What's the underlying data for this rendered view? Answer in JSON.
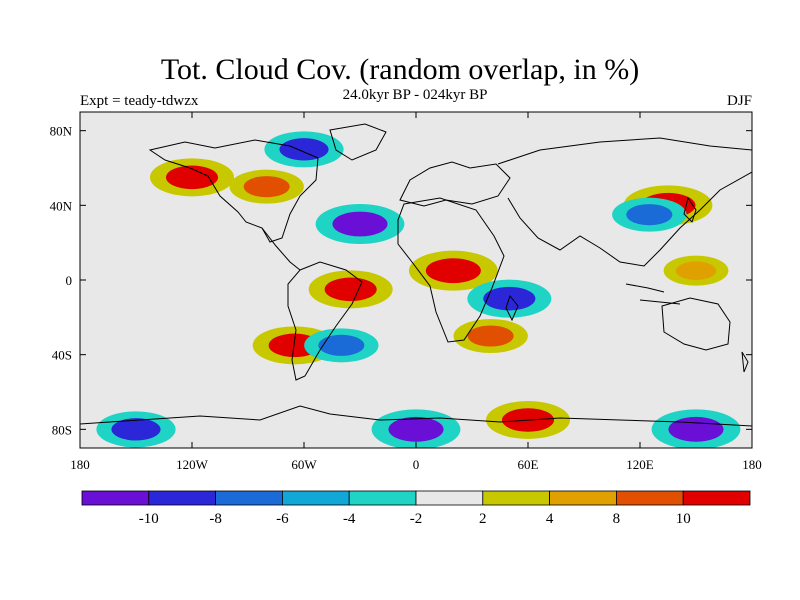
{
  "figure": {
    "title": "Tot. Cloud Cov. (random overlap, in %)",
    "subtitle": "24.0kyr BP - 024kyr BP",
    "experiment_label": "Expt = teady-tdwzx",
    "season": "DJF"
  },
  "chart_data": {
    "type": "heatmap",
    "title": "Tot. Cloud Cov. (random overlap, in %)",
    "subtitle": "24.0kyr BP - 024kyr BP",
    "projection": "cylindrical equidistant",
    "x_ticks": [
      "180",
      "120W",
      "60W",
      "0",
      "60E",
      "120E",
      "180"
    ],
    "x_tick_values": [
      -180,
      -120,
      -60,
      0,
      60,
      120,
      180
    ],
    "y_ticks": [
      "80N",
      "40N",
      "0",
      "40S",
      "80S"
    ],
    "y_tick_values": [
      80,
      40,
      0,
      -40,
      -80
    ],
    "xlim": [
      -180,
      180
    ],
    "ylim": [
      -90,
      90
    ],
    "colorbar": {
      "labels": [
        "-10",
        "-8",
        "-6",
        "-4",
        "-2",
        "2",
        "4",
        "8",
        "10"
      ],
      "levels": [
        -10,
        -8,
        -6,
        -4,
        -2,
        2,
        4,
        8,
        10
      ],
      "colors": [
        "#6a0fd6",
        "#2b27d8",
        "#1a6ad8",
        "#11a7d6",
        "#1fd4c4",
        "#e8e8e8",
        "#c8c800",
        "#e0a000",
        "#e05000",
        "#e00000"
      ]
    },
    "regions": [
      {
        "lon": 20,
        "lat": 5,
        "value": 11
      },
      {
        "lon": -35,
        "lat": -5,
        "value": 10
      },
      {
        "lon": -65,
        "lat": -35,
        "value": 10
      },
      {
        "lon": 135,
        "lat": 40,
        "value": 11
      },
      {
        "lon": -120,
        "lat": 55,
        "value": 10
      },
      {
        "lon": -80,
        "lat": 50,
        "value": 8
      },
      {
        "lon": 40,
        "lat": -30,
        "value": 8
      },
      {
        "lon": 150,
        "lat": 5,
        "value": 6
      },
      {
        "lon": -30,
        "lat": 30,
        "value": -11
      },
      {
        "lon": 50,
        "lat": -10,
        "value": -10
      },
      {
        "lon": 125,
        "lat": 35,
        "value": -8
      },
      {
        "lon": -40,
        "lat": -35,
        "value": -8
      },
      {
        "lon": -60,
        "lat": 70,
        "value": -9
      },
      {
        "lon": 0,
        "lat": -80,
        "value": -11
      },
      {
        "lon": 150,
        "lat": -80,
        "value": -11
      },
      {
        "lon": -150,
        "lat": -80,
        "value": -9
      },
      {
        "lon": 60,
        "lat": -75,
        "value": 10
      }
    ]
  }
}
